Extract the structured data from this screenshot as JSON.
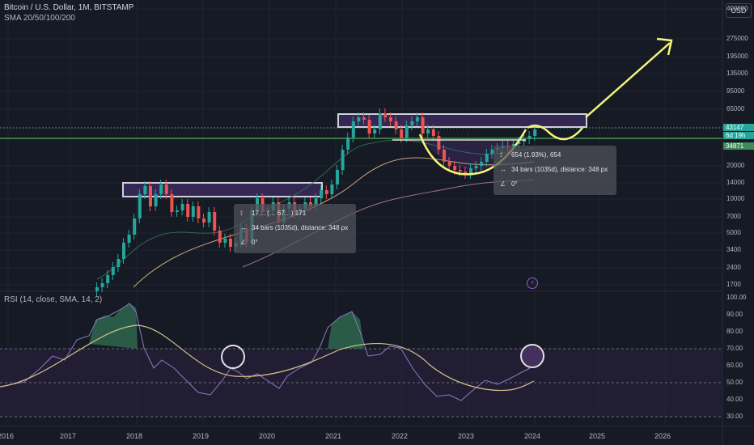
{
  "header": {
    "title": "Bitcoin / U.S. Dollar, 1M, BITSTAMP",
    "indicator": "SMA 20/50/100/200",
    "currency": "USD"
  },
  "price_axis": [
    "400000",
    "275000",
    "195000",
    "135000",
    "95000",
    "65000",
    "43147",
    "6d 19h",
    "34871",
    "20000",
    "14000",
    "10000",
    "7000",
    "5000",
    "3400",
    "2400",
    "1700"
  ],
  "price_tags": {
    "last": "43147",
    "countdown": "6d 19h",
    "level": "34871",
    "last_color": "#26a69a",
    "level_color": "#3f8a5a"
  },
  "rsi": {
    "title": "RSI (14, close, SMA, 14, 2)",
    "axis": [
      "100.00",
      "90.00",
      "80.00",
      "70.00",
      "60.00",
      "50.00",
      "40.00",
      "30.00"
    ]
  },
  "time_axis": [
    "2016",
    "2017",
    "2018",
    "2019",
    "2020",
    "2021",
    "2022",
    "2023",
    "2024",
    "2025",
    "2026"
  ],
  "tooltip_1": {
    "price_line": "17… (… 67…) 171",
    "bars_line": "34 bars (1035d), distance: 348 px",
    "angle_line": "0°"
  },
  "tooltip_2": {
    "price_line": "654 (1.93%), 654",
    "bars_line": "34 bars (1035d), distance: 348 px",
    "angle_line": "0°"
  },
  "icons": {
    "price_range": "price-range-icon",
    "bars_range": "bars-range-icon",
    "angle": "angle-icon",
    "alert": "alert-icon"
  },
  "colors": {
    "background": "#161a25",
    "up": "#26a69a",
    "down": "#ef5350",
    "zone": "#3b2a5c",
    "arrow": "#f5f57a",
    "rsi_line": "#8e7cc3",
    "rsi_ma": "#d4c28a",
    "level_line": "#4caf50"
  }
}
